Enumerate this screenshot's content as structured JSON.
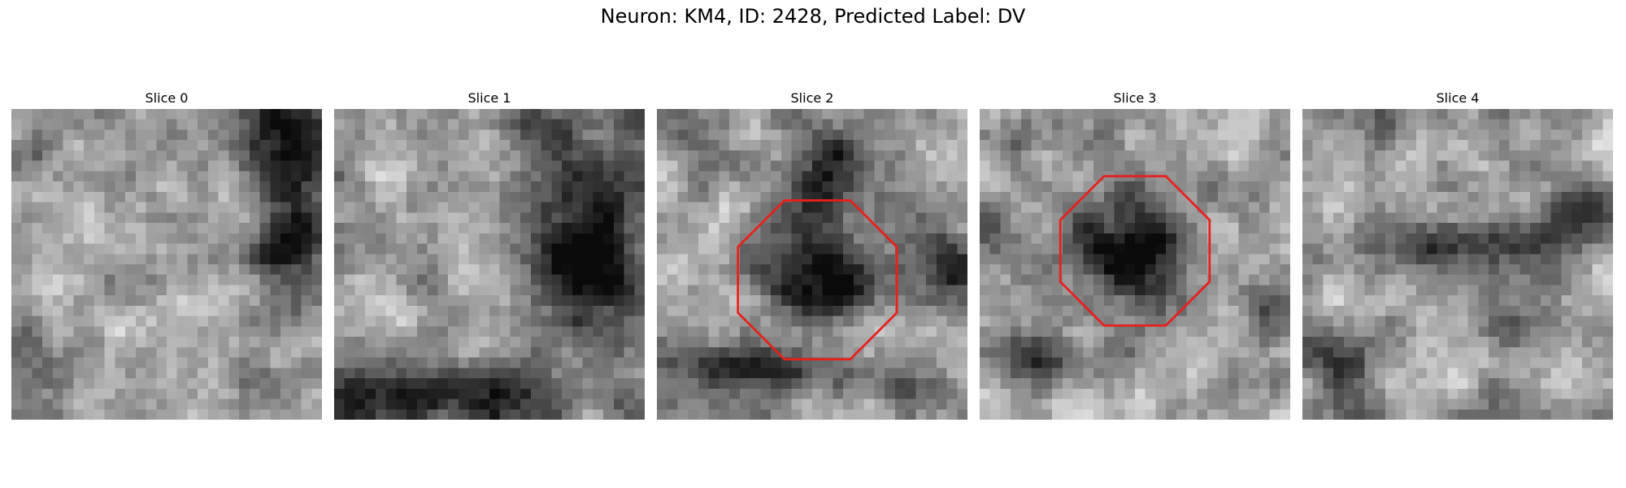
{
  "figure": {
    "title": "Neuron: KM4, ID: 2428, Predicted Label: DV"
  },
  "slices": [
    {
      "title": "Slice 0",
      "seed": 11,
      "features": "s0",
      "outline": false
    },
    {
      "title": "Slice 1",
      "seed": 23,
      "features": "s1",
      "outline": false
    },
    {
      "title": "Slice 2",
      "seed": 37,
      "features": "s2",
      "outline": true
    },
    {
      "title": "Slice 3",
      "seed": 51,
      "features": "s3",
      "outline": true
    },
    {
      "title": "Slice 4",
      "seed": 67,
      "features": "s4",
      "outline": false
    }
  ],
  "colors": {
    "outline": "#e8201c"
  }
}
